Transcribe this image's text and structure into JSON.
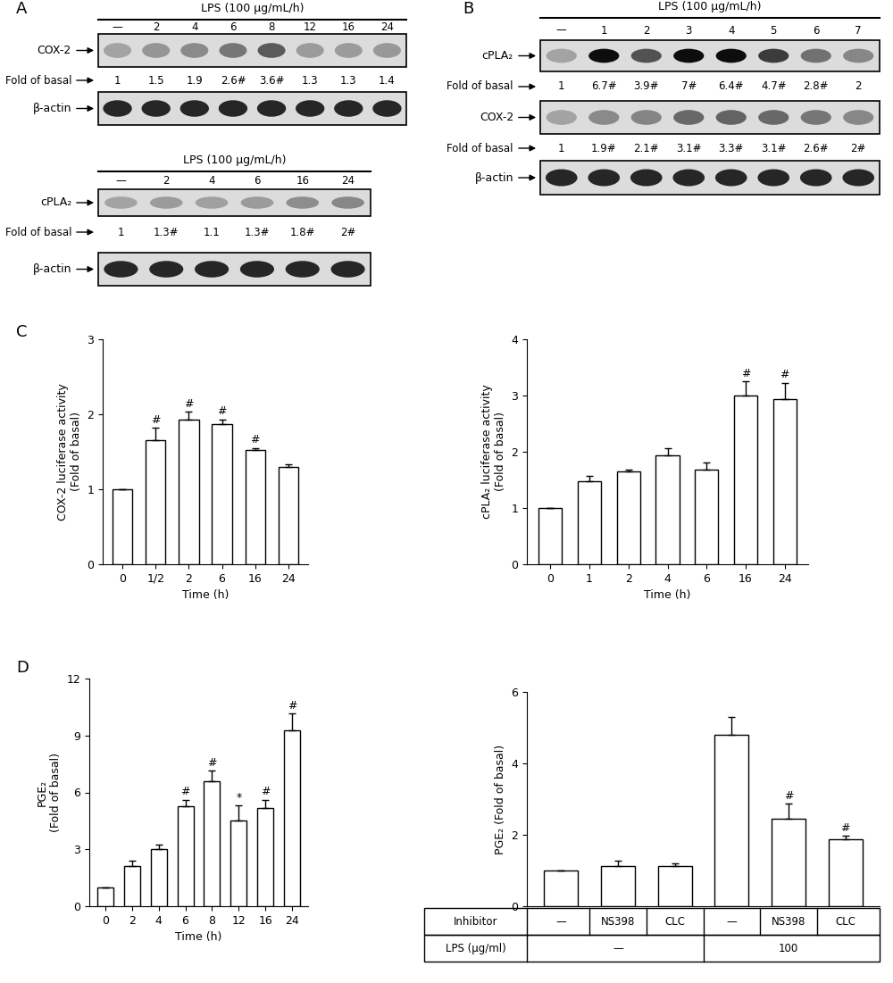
{
  "chart_data": [
    {
      "panel": "C",
      "type": "bar",
      "ylabel": "COX-2 luciferase activity\n(Fold of basal)",
      "xlabel": "Time (h)",
      "categories": [
        "0",
        "1/2",
        "2",
        "6",
        "16",
        "24"
      ],
      "values": [
        1,
        1.65,
        1.93,
        1.87,
        1.52,
        1.3
      ],
      "errors": [
        0,
        0.17,
        0.1,
        0.06,
        0.03,
        0.03
      ],
      "marks": [
        null,
        "#",
        "#",
        "#",
        "#",
        null
      ],
      "color": "#ffffff",
      "ylim": [
        0,
        3
      ],
      "yticks": [
        0,
        1,
        2,
        3
      ]
    },
    {
      "type": "bar",
      "ylabel": "cPLA₂ luciferase activity\n(Fold of basal)",
      "xlabel": "Time (h)",
      "categories": [
        "0",
        "1",
        "2",
        "4",
        "6",
        "16",
        "24"
      ],
      "values": [
        1,
        1.47,
        1.65,
        1.93,
        1.68,
        3.0,
        2.93
      ],
      "errors": [
        0,
        0.1,
        0.04,
        0.13,
        0.13,
        0.25,
        0.3
      ],
      "marks": [
        null,
        null,
        null,
        null,
        null,
        "#",
        "#"
      ],
      "color": "#ffffff",
      "ylim": [
        0,
        4
      ],
      "yticks": [
        0,
        1,
        2,
        3,
        4
      ]
    },
    {
      "panel": "D",
      "type": "bar",
      "ylabel": "PGE₂\n(Fold of basal)",
      "xlabel": "Time (h)",
      "categories": [
        "0",
        "2",
        "4",
        "6",
        "8",
        "12",
        "16",
        "24"
      ],
      "values": [
        1,
        2.1,
        3.0,
        5.25,
        6.6,
        4.5,
        5.2,
        9.25
      ],
      "errors": [
        0,
        0.3,
        0.25,
        0.35,
        0.55,
        0.8,
        0.4,
        0.9
      ],
      "marks": [
        null,
        null,
        null,
        "#",
        "#",
        "*",
        "#",
        "#"
      ],
      "color": "#ffffff",
      "ylim": [
        0,
        12
      ],
      "yticks": [
        0,
        3,
        6,
        9,
        12
      ]
    },
    {
      "type": "bar",
      "ylabel": "PGE₂ (Fold of basal)",
      "values": [
        1,
        1.12,
        1.12,
        4.8,
        2.45,
        1.87
      ],
      "errors": [
        0,
        0.15,
        0.08,
        0.5,
        0.42,
        0.1
      ],
      "marks": [
        null,
        null,
        null,
        null,
        "#",
        "#"
      ],
      "tick_labels": "y",
      "color": "#ffffff",
      "ylim": [
        0,
        6
      ],
      "yticks": [
        0,
        2,
        4,
        6
      ],
      "table": {
        "rows": [
          {
            "label": "Inhibitor",
            "cells": [
              "—",
              "NS398",
              "CLC",
              "—",
              "NS398",
              "CLC"
            ]
          },
          {
            "label": "LPS (µg/ml)",
            "groups": [
              "—",
              "100"
            ]
          }
        ]
      }
    }
  ],
  "blots": [
    {
      "panel": "A",
      "header": "LPS (100 µg/mL/h)",
      "lanes": [
        "—",
        "2",
        "4",
        "6",
        "8",
        "12",
        "16",
        "24"
      ],
      "rows": [
        {
          "name": "COX-2",
          "fold_label": "Fold of basal",
          "fold": [
            1,
            1.5,
            1.9,
            2.6,
            3.6,
            1.3,
            1.3,
            1.4
          ],
          "marks": [
            null,
            null,
            null,
            "#",
            "#",
            null,
            null,
            null
          ]
        },
        {
          "name": "β-actin"
        }
      ]
    },
    {
      "header": "LPS (100 µg/mL/h)",
      "lanes": [
        "—",
        "2",
        "4",
        "6",
        "16",
        "24"
      ],
      "rows": [
        {
          "name": "cPLA₂",
          "fold_label": "Fold of basal",
          "fold": [
            1,
            1.3,
            1.1,
            1.3,
            1.8,
            2
          ],
          "marks": [
            null,
            "#",
            null,
            "#",
            "#",
            "#"
          ]
        },
        {
          "name": "β-actin"
        }
      ]
    },
    {
      "panel": "B",
      "header": "LPS (100 µg/mL/h)",
      "lanes": [
        "—",
        "1",
        "2",
        "3",
        "4",
        "5",
        "6",
        "7"
      ],
      "rows": [
        {
          "name": "cPLA₂",
          "fold_label": "Fold of basal",
          "fold": [
            1,
            6.7,
            3.9,
            7,
            6.4,
            4.7,
            2.8,
            2
          ],
          "marks": [
            null,
            "#",
            "#",
            "#",
            "#",
            "#",
            "#",
            null
          ]
        },
        {
          "name": "COX-2",
          "fold_label": "Fold of basal",
          "fold": [
            1,
            1.9,
            2.1,
            3.1,
            3.3,
            3.1,
            2.6,
            2
          ],
          "marks": [
            null,
            "#",
            "#",
            "#",
            "#",
            "#",
            "#",
            "#"
          ]
        },
        {
          "name": "β-actin"
        }
      ]
    }
  ]
}
